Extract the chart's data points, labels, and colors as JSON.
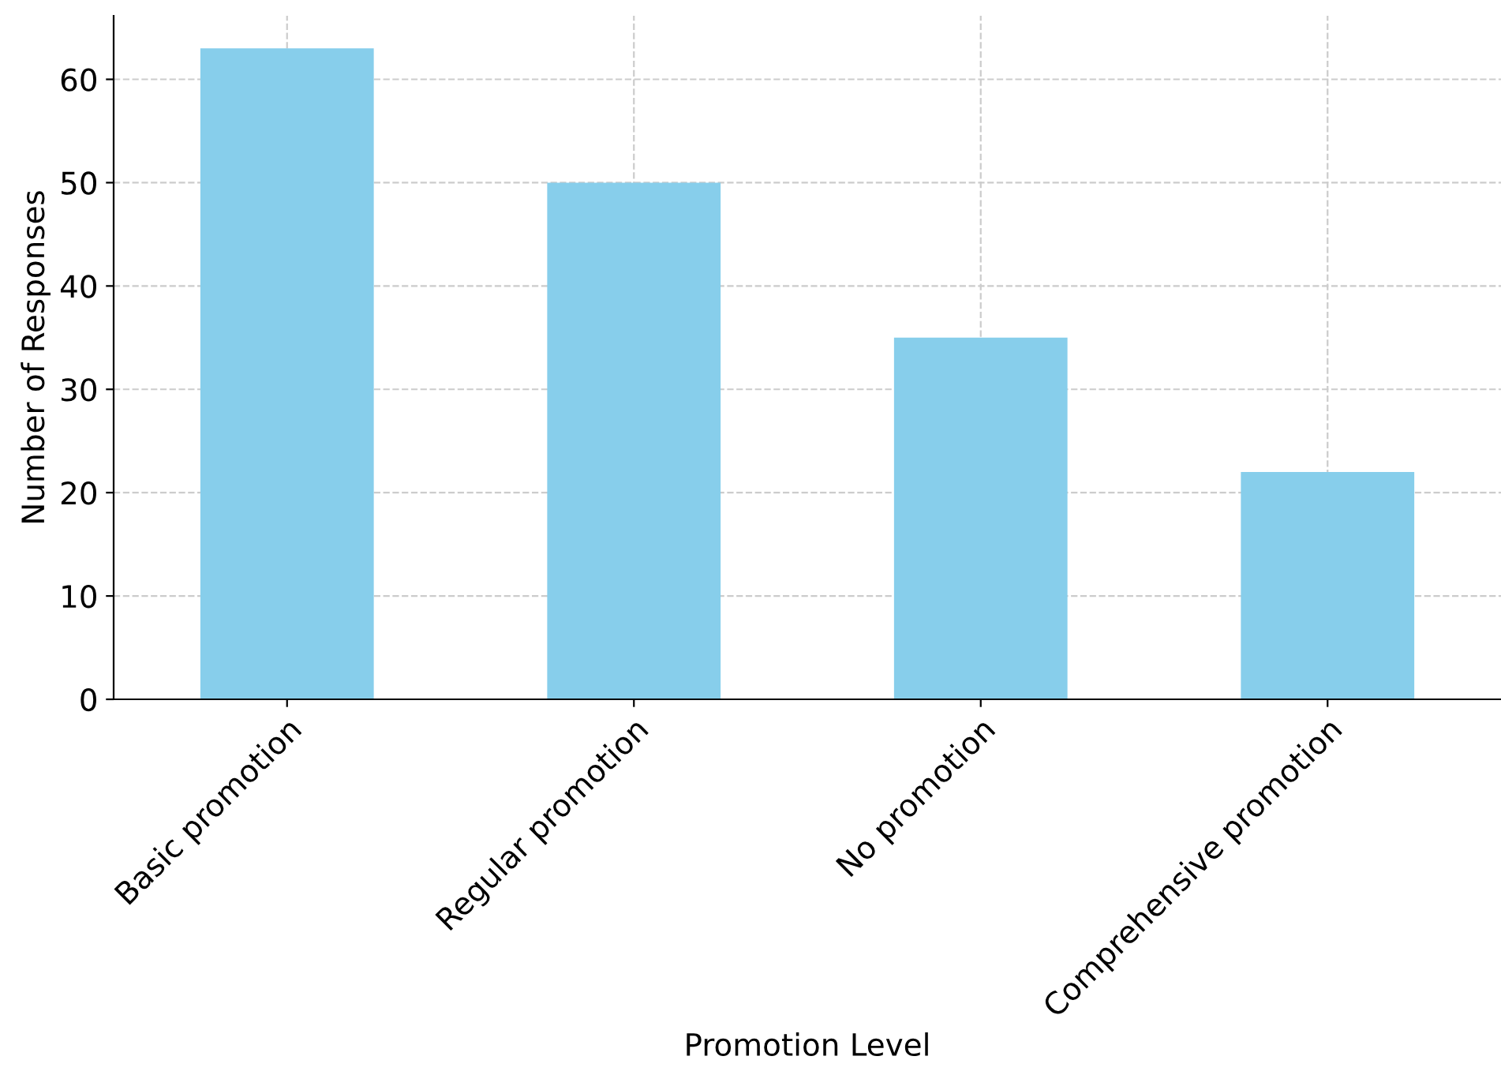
{
  "chart_data": {
    "type": "bar",
    "xlabel": "Promotion Level",
    "ylabel": "Number of Responses",
    "categories": [
      "Basic promotion",
      "Regular promotion",
      "No promotion",
      "Comprehensive promotion"
    ],
    "values": [
      63,
      50,
      35,
      22
    ],
    "color": "#87ceeb",
    "ylim": [
      0,
      66.15
    ],
    "yticks": [
      0,
      10,
      20,
      30,
      40,
      50,
      60
    ],
    "grid": true
  }
}
